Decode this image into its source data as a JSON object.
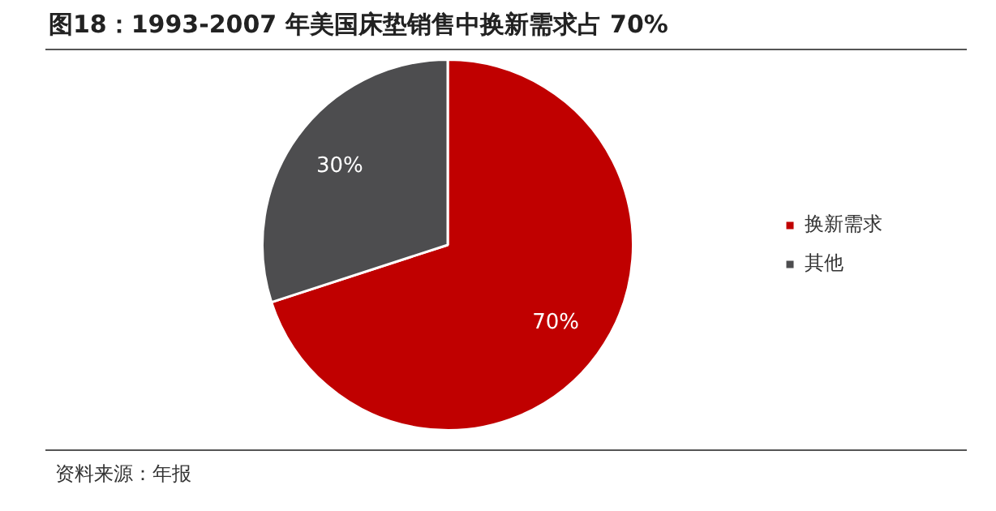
{
  "chart_data": {
    "type": "pie",
    "title": "图18：1993-2007 年美国床垫销售中换新需求占 70%",
    "categories": [
      "换新需求",
      "其他"
    ],
    "values": [
      70,
      30
    ],
    "colors": [
      "#c00000",
      "#4d4d4f"
    ],
    "value_labels": [
      "70%",
      "30%"
    ],
    "legend": "right",
    "annotations": [
      "资料来源：年报"
    ]
  }
}
